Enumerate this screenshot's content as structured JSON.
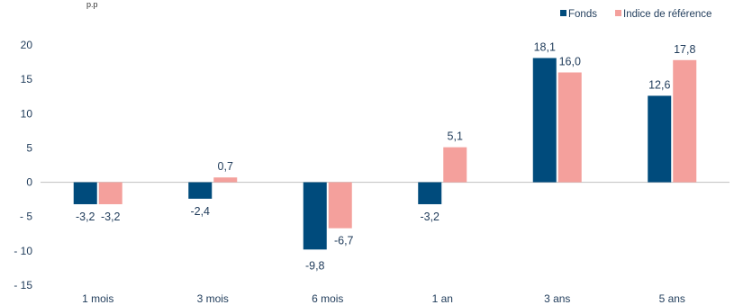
{
  "header": {
    "clipped_text": "p.p"
  },
  "chart_data": {
    "type": "bar",
    "categories": [
      "1 mois",
      "3 mois",
      "6 mois",
      "1 an",
      "3 ans",
      "5 ans"
    ],
    "series": [
      {
        "name": "Fonds",
        "color": "#004b7c",
        "values": [
          -3.2,
          -2.4,
          -9.8,
          -3.2,
          18.1,
          12.6
        ],
        "labels": [
          "-3,2",
          "-2,4",
          "-9,8",
          "-3,2",
          "18,1",
          "12,6"
        ]
      },
      {
        "name": "Indice de référence",
        "color": "#f4a09c",
        "values": [
          -3.2,
          0.7,
          -6.7,
          5.1,
          16.0,
          17.8
        ],
        "labels": [
          "-3,2",
          "0,7",
          "-6,7",
          "5,1",
          "16,0",
          "17,8"
        ]
      }
    ],
    "ylim": [
      -15,
      20
    ],
    "yticks": [
      {
        "value": 20,
        "label": "20"
      },
      {
        "value": 15,
        "label": "15"
      },
      {
        "value": 10,
        "label": "10"
      },
      {
        "value": 5,
        "label": "5"
      },
      {
        "value": 0,
        "label": "0"
      },
      {
        "value": -5,
        "label": "- 5"
      },
      {
        "value": -10,
        "label": "- 10"
      },
      {
        "value": -15,
        "label": "- 15"
      }
    ],
    "grid": false,
    "legend_position": "top-right",
    "title": "",
    "xlabel": "",
    "ylabel": ""
  }
}
